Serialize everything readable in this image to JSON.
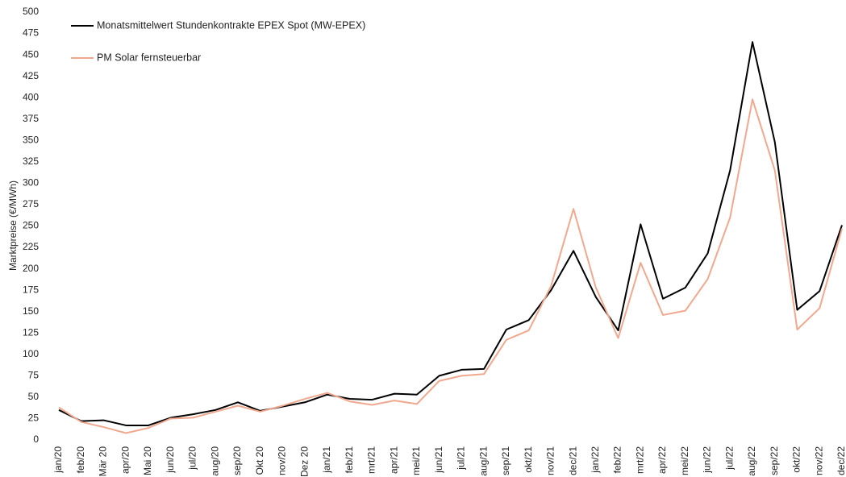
{
  "chart_data": {
    "type": "line",
    "ylabel": "Marktpreise (€/MWh)",
    "categories": [
      "jan/20",
      "feb/20",
      "Mär 20",
      "apr/20",
      "Mai 20",
      "jun/20",
      "jul/20",
      "aug/20",
      "sep/20",
      "Okt 20",
      "nov/20",
      "Dez 20",
      "jan/21",
      "feb/21",
      "mrt/21",
      "apr/21",
      "mei/21",
      "jun/21",
      "jul/21",
      "aug/21",
      "sep/21",
      "okt/21",
      "nov/21",
      "dec/21",
      "jan/22",
      "feb/22",
      "mrt/22",
      "apr/22",
      "mei/22",
      "jun/22",
      "jul/22",
      "aug/22",
      "sep/22",
      "okt/22",
      "nov/22",
      "dec/22"
    ],
    "series": [
      {
        "name": "Monatsmittelwert Stundenkontrakte EPEX Spot (MW-EPEX)",
        "color": "#000000",
        "values": [
          35,
          22,
          23,
          17,
          17,
          26,
          30,
          35,
          44,
          34,
          39,
          44,
          53,
          48,
          47,
          54,
          53,
          75,
          82,
          83,
          129,
          140,
          175,
          221,
          167,
          128,
          252,
          165,
          178,
          218,
          315,
          465,
          348,
          152,
          174,
          251
        ]
      },
      {
        "name": "PM Solar fernsteuerbar",
        "color": "#f0a88e",
        "values": [
          38,
          21,
          15,
          8,
          14,
          25,
          26,
          33,
          40,
          33,
          40,
          48,
          55,
          45,
          41,
          46,
          42,
          69,
          75,
          77,
          117,
          128,
          180,
          270,
          178,
          119,
          207,
          146,
          151,
          188,
          260,
          398,
          315,
          129,
          154,
          247
        ]
      }
    ],
    "ylim": [
      0,
      500
    ],
    "yticks": [
      0,
      25,
      50,
      75,
      100,
      125,
      150,
      175,
      200,
      225,
      250,
      275,
      300,
      325,
      350,
      375,
      400,
      425,
      450,
      475,
      500
    ],
    "grid": false
  }
}
